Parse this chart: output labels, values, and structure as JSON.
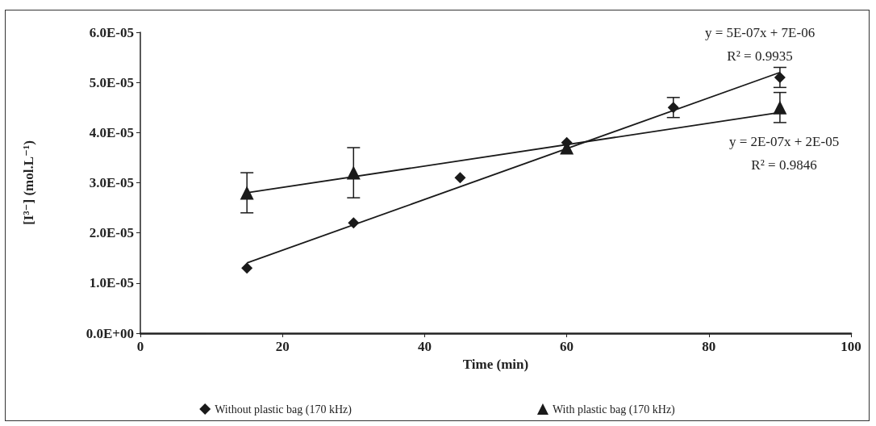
{
  "chart_data": {
    "type": "scatter",
    "xlabel": "Time (min)",
    "ylabel": "[I³⁻] (mol.L⁻¹)",
    "xlim": [
      0,
      100
    ],
    "xticks": [
      0,
      20,
      40,
      60,
      80,
      100
    ],
    "ylim": [
      0,
      6e-05
    ],
    "yticks": [
      {
        "value": 0,
        "label": "0.0E+00"
      },
      {
        "value": 1e-05,
        "label": "1.0E-05"
      },
      {
        "value": 2e-05,
        "label": "2.0E-05"
      },
      {
        "value": 3e-05,
        "label": "3.0E-05"
      },
      {
        "value": 4e-05,
        "label": "4.0E-05"
      },
      {
        "value": 5e-05,
        "label": "5.0E-05"
      },
      {
        "value": 6e-05,
        "label": "6.0E-05"
      }
    ],
    "grid": false,
    "legend": "bottom",
    "series": [
      {
        "name": "Without plastic bag (170 kHz)",
        "color": "#1a1a1a",
        "marker": "diamond",
        "x": [
          15,
          30,
          45,
          60,
          75,
          90
        ],
        "values": [
          1.3e-05,
          2.2e-05,
          3.1e-05,
          3.8e-05,
          4.5e-05,
          5.1e-05
        ],
        "errors": [
          null,
          null,
          null,
          null,
          2e-06,
          2e-06
        ]
      },
      {
        "name": "With plastic bag (170 kHz)",
        "color": "#1a1a1a",
        "marker": "triangle",
        "x": [
          15,
          30,
          60,
          90
        ],
        "values": [
          2.8e-05,
          3.2e-05,
          3.7e-05,
          4.5e-05
        ],
        "errors": [
          4e-06,
          5e-06,
          null,
          3e-06
        ]
      },
      {
        "type": "line",
        "color": "#1a1a1a",
        "marker": "none",
        "x": [
          15,
          90
        ],
        "values": [
          1.4e-05,
          5.2e-05
        ]
      },
      {
        "type": "line",
        "color": "#1a1a1a",
        "marker": "none",
        "x": [
          15,
          90
        ],
        "values": [
          2.8e-05,
          4.4e-05
        ]
      }
    ],
    "annotations": [
      "y = 5E-07x + 7E-06",
      "R² = 0.9935",
      "y = 2E-07x + 2E-05",
      "R² = 0.9846"
    ]
  }
}
